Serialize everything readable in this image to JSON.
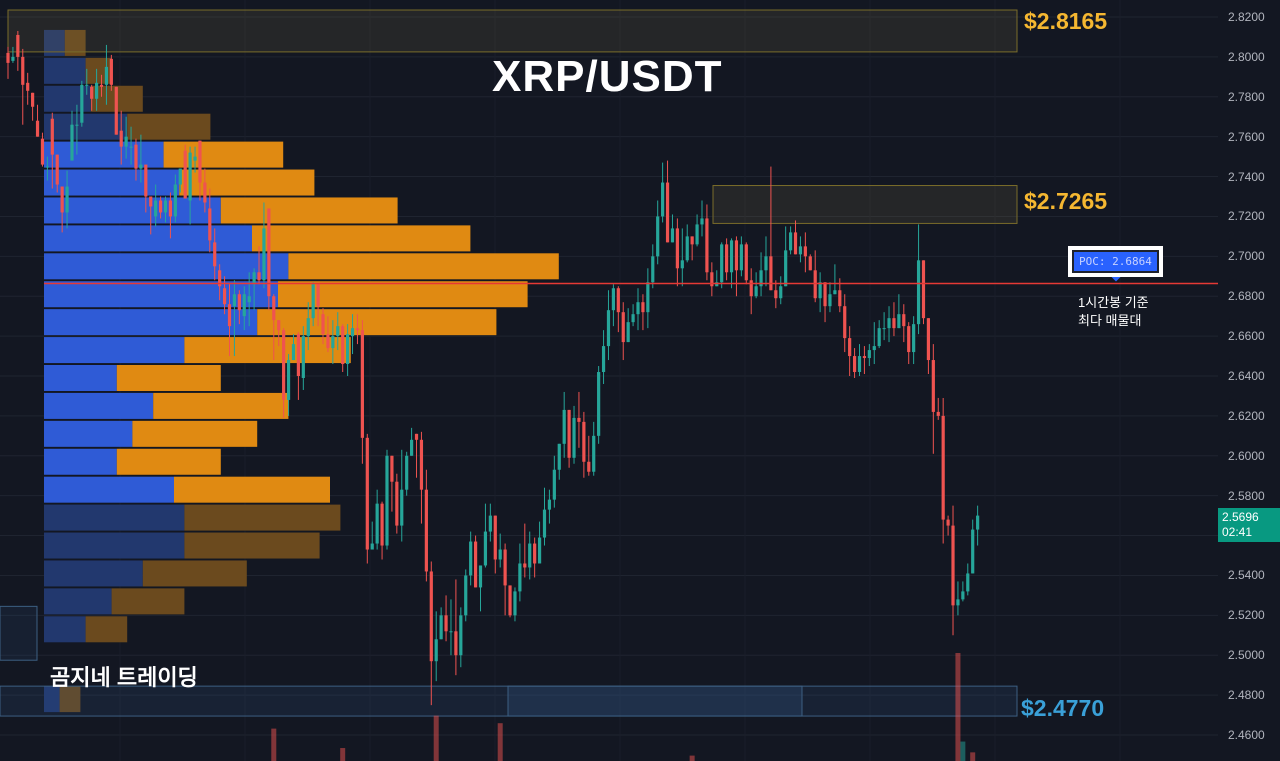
{
  "chart_data": {
    "type": "candlestick",
    "title": "XRP/USDT",
    "watermark": "곰지네 트레이딩",
    "y_range": [
      2.453,
      2.824
    ],
    "y_ticks": [
      "2.8200",
      "2.8000",
      "2.7800",
      "2.7600",
      "2.7400",
      "2.7200",
      "2.7000",
      "2.6800",
      "2.6600",
      "2.6400",
      "2.6200",
      "2.6000",
      "2.5800",
      "2.5600",
      "2.5400",
      "2.5200",
      "2.5000",
      "2.4800",
      "2.4600"
    ],
    "last_price": {
      "value": "2.5696",
      "countdown": "02:41",
      "color": "#089981"
    },
    "levels": [
      {
        "label": "$2.8165",
        "price": 2.8165,
        "color": "#f5b731"
      },
      {
        "label": "$2.7265",
        "price": 2.7265,
        "color": "#f5b731"
      },
      {
        "label": "$2.4770",
        "price": 2.477,
        "color": "#3aa0d8"
      }
    ],
    "poc": {
      "label": "POC: 2.6864",
      "price": 2.6864,
      "note_line1": "1시간봉 기준",
      "note_line2": "최다 매물대"
    },
    "colors": {
      "up": "#26a69a",
      "down": "#ef5350",
      "vp_buy": "#2f5bd6",
      "vp_sell": "#e08a12",
      "poc_line": "#e53935"
    },
    "volume_profile": [
      {
        "price": 2.807,
        "buy": 0.04,
        "sell": 0.04,
        "in_va": false
      },
      {
        "price": 2.793,
        "buy": 0.08,
        "sell": 0.05,
        "in_va": false
      },
      {
        "price": 2.779,
        "buy": 0.09,
        "sell": 0.1,
        "in_va": false
      },
      {
        "price": 2.765,
        "buy": 0.16,
        "sell": 0.16,
        "in_va": false
      },
      {
        "price": 2.751,
        "buy": 0.23,
        "sell": 0.23,
        "in_va": true
      },
      {
        "price": 2.737,
        "buy": 0.26,
        "sell": 0.26,
        "in_va": true
      },
      {
        "price": 2.723,
        "buy": 0.34,
        "sell": 0.34,
        "in_va": true
      },
      {
        "price": 2.709,
        "buy": 0.4,
        "sell": 0.42,
        "in_va": true
      },
      {
        "price": 2.695,
        "buy": 0.47,
        "sell": 0.52,
        "in_va": true
      },
      {
        "price": 2.681,
        "buy": 0.45,
        "sell": 0.48,
        "in_va": true
      },
      {
        "price": 2.667,
        "buy": 0.41,
        "sell": 0.46,
        "in_va": true
      },
      {
        "price": 2.653,
        "buy": 0.27,
        "sell": 0.32,
        "in_va": true
      },
      {
        "price": 2.639,
        "buy": 0.14,
        "sell": 0.2,
        "in_va": true
      },
      {
        "price": 2.625,
        "buy": 0.21,
        "sell": 0.26,
        "in_va": true
      },
      {
        "price": 2.611,
        "buy": 0.17,
        "sell": 0.24,
        "in_va": true
      },
      {
        "price": 2.597,
        "buy": 0.14,
        "sell": 0.2,
        "in_va": true
      },
      {
        "price": 2.583,
        "buy": 0.25,
        "sell": 0.3,
        "in_va": true
      },
      {
        "price": 2.569,
        "buy": 0.27,
        "sell": 0.3,
        "in_va": false
      },
      {
        "price": 2.555,
        "buy": 0.27,
        "sell": 0.26,
        "in_va": false
      },
      {
        "price": 2.541,
        "buy": 0.19,
        "sell": 0.2,
        "in_va": false
      },
      {
        "price": 2.527,
        "buy": 0.13,
        "sell": 0.14,
        "in_va": false
      },
      {
        "price": 2.513,
        "buy": 0.08,
        "sell": 0.08,
        "in_va": false
      },
      {
        "price": 2.478,
        "buy": 0.03,
        "sell": 0.04,
        "in_va": false
      }
    ],
    "candles": [
      [
        2.802,
        2.797,
        2.805,
        2.789
      ],
      [
        2.798,
        2.8,
        2.805,
        2.797
      ],
      [
        2.811,
        2.8,
        2.813,
        2.793
      ],
      [
        2.8,
        2.786,
        2.804,
        2.766
      ],
      [
        2.787,
        2.783,
        2.792,
        2.776
      ],
      [
        2.782,
        2.775,
        2.782,
        2.768
      ],
      [
        2.768,
        2.76,
        2.776,
        2.76
      ],
      [
        2.759,
        2.746,
        2.762,
        2.745
      ],
      [
        2.745,
        2.745,
        2.75,
        2.738
      ],
      [
        2.769,
        2.751,
        2.772,
        2.734
      ],
      [
        2.751,
        2.736,
        2.751,
        2.732
      ],
      [
        2.735,
        2.722,
        2.735,
        2.712
      ],
      [
        2.722,
        2.735,
        2.743,
        2.714
      ],
      [
        2.748,
        2.766,
        2.773,
        2.748
      ],
      [
        2.766,
        2.766,
        2.776,
        2.751
      ],
      [
        2.767,
        2.786,
        2.788,
        2.765
      ],
      [
        2.786,
        2.786,
        2.794,
        2.781
      ],
      [
        2.785,
        2.779,
        2.786,
        2.773
      ],
      [
        2.779,
        2.787,
        2.794,
        2.773
      ],
      [
        2.786,
        2.785,
        2.791,
        2.78
      ],
      [
        2.786,
        2.795,
        2.806,
        2.776
      ],
      [
        2.799,
        2.786,
        2.801,
        2.783
      ],
      [
        2.785,
        2.761,
        2.785,
        2.761
      ],
      [
        2.763,
        2.755,
        2.773,
        2.746
      ],
      [
        2.755,
        2.76,
        2.77,
        2.749
      ],
      [
        2.755,
        2.755,
        2.765,
        2.746
      ],
      [
        2.756,
        2.744,
        2.759,
        2.738
      ],
      [
        2.744,
        2.746,
        2.761,
        2.737
      ],
      [
        2.746,
        2.73,
        2.746,
        2.722
      ],
      [
        2.73,
        2.725,
        2.73,
        2.711
      ],
      [
        2.72,
        2.728,
        2.736,
        2.715
      ],
      [
        2.728,
        2.722,
        2.73,
        2.719
      ],
      [
        2.722,
        2.728,
        2.73,
        2.717
      ],
      [
        2.728,
        2.72,
        2.732,
        2.709
      ],
      [
        2.72,
        2.736,
        2.741,
        2.717
      ],
      [
        2.736,
        2.744,
        2.744,
        2.732
      ],
      [
        2.753,
        2.729,
        2.756,
        2.729
      ],
      [
        2.728,
        2.752,
        2.755,
        2.716
      ],
      [
        2.748,
        2.75,
        2.755,
        2.742
      ],
      [
        2.758,
        2.737,
        2.758,
        2.728
      ],
      [
        2.737,
        2.727,
        2.744,
        2.722
      ],
      [
        2.724,
        2.708,
        2.734,
        2.702
      ],
      [
        2.707,
        2.695,
        2.714,
        2.688
      ],
      [
        2.693,
        2.685,
        2.696,
        2.678
      ],
      [
        2.684,
        2.676,
        2.69,
        2.671
      ],
      [
        2.676,
        2.665,
        2.686,
        2.65
      ],
      [
        2.675,
        2.681,
        2.688,
        2.65
      ],
      [
        2.681,
        2.673,
        2.683,
        2.666
      ],
      [
        2.67,
        2.681,
        2.685,
        2.663
      ],
      [
        2.677,
        2.68,
        2.692,
        2.665
      ],
      [
        2.686,
        2.692,
        2.694,
        2.673
      ],
      [
        2.692,
        2.688,
        2.705,
        2.686
      ],
      [
        2.688,
        2.714,
        2.727,
        2.684
      ],
      [
        2.724,
        2.68,
        2.724,
        2.673
      ],
      [
        2.68,
        2.668,
        2.681,
        2.648
      ],
      [
        2.668,
        2.663,
        2.668,
        2.655
      ],
      [
        2.663,
        2.628,
        2.664,
        2.619
      ],
      [
        2.628,
        2.648,
        2.651,
        2.62
      ],
      [
        2.648,
        2.656,
        2.661,
        2.648
      ],
      [
        2.661,
        2.64,
        2.662,
        2.628
      ],
      [
        2.639,
        2.66,
        2.665,
        2.633
      ],
      [
        2.66,
        2.669,
        2.677,
        2.653
      ],
      [
        2.669,
        2.686,
        2.687,
        2.665
      ],
      [
        2.686,
        2.675,
        2.686,
        2.665
      ],
      [
        2.671,
        2.661,
        2.674,
        2.656
      ],
      [
        2.661,
        2.654,
        2.67,
        2.652
      ],
      [
        2.654,
        2.66,
        2.668,
        2.646
      ],
      [
        2.66,
        2.665,
        2.672,
        2.653
      ],
      [
        2.665,
        2.646,
        2.666,
        2.642
      ],
      [
        2.646,
        2.661,
        2.666,
        2.64
      ],
      [
        2.66,
        2.664,
        2.671,
        2.651
      ],
      [
        2.664,
        2.663,
        2.671,
        2.656
      ],
      [
        2.663,
        2.609,
        2.668,
        2.596
      ],
      [
        2.609,
        2.553,
        2.611,
        2.546
      ],
      [
        2.553,
        2.556,
        2.567,
        2.553
      ],
      [
        2.556,
        2.576,
        2.583,
        2.553
      ],
      [
        2.576,
        2.555,
        2.577,
        2.548
      ],
      [
        2.555,
        2.6,
        2.603,
        2.553
      ],
      [
        2.6,
        2.587,
        2.6,
        2.572
      ],
      [
        2.587,
        2.565,
        2.591,
        2.561
      ],
      [
        2.565,
        2.583,
        2.603,
        2.557
      ],
      [
        2.583,
        2.6,
        2.602,
        2.58
      ],
      [
        2.6,
        2.608,
        2.614,
        2.6
      ],
      [
        2.611,
        2.608,
        2.611,
        2.589
      ],
      [
        2.608,
        2.583,
        2.612,
        2.566
      ],
      [
        2.583,
        2.542,
        2.593,
        2.537
      ],
      [
        2.542,
        2.497,
        2.547,
        2.475
      ],
      [
        2.497,
        2.508,
        2.522,
        2.487
      ],
      [
        2.508,
        2.52,
        2.524,
        2.508
      ],
      [
        2.52,
        2.512,
        2.53,
        2.507
      ],
      [
        2.512,
        2.512,
        2.528,
        2.5
      ],
      [
        2.512,
        2.5,
        2.538,
        2.49
      ],
      [
        2.5,
        2.52,
        2.524,
        2.494
      ],
      [
        2.52,
        2.54,
        2.543,
        2.517
      ],
      [
        2.54,
        2.557,
        2.562,
        2.535
      ],
      [
        2.557,
        2.534,
        2.56,
        2.534
      ],
      [
        2.534,
        2.545,
        2.545,
        2.522
      ],
      [
        2.545,
        2.562,
        2.576,
        2.544
      ],
      [
        2.562,
        2.57,
        2.576,
        2.557
      ],
      [
        2.57,
        2.548,
        2.57,
        2.541
      ],
      [
        2.548,
        2.553,
        2.561,
        2.544
      ],
      [
        2.553,
        2.535,
        2.556,
        2.52
      ],
      [
        2.535,
        2.52,
        2.535,
        2.519
      ],
      [
        2.52,
        2.532,
        2.534,
        2.517
      ],
      [
        2.532,
        2.546,
        2.556,
        2.527
      ],
      [
        2.546,
        2.544,
        2.566,
        2.539
      ],
      [
        2.544,
        2.556,
        2.562,
        2.538
      ],
      [
        2.556,
        2.546,
        2.559,
        2.539
      ],
      [
        2.546,
        2.559,
        2.567,
        2.546
      ],
      [
        2.559,
        2.573,
        2.584,
        2.555
      ],
      [
        2.573,
        2.578,
        2.583,
        2.566
      ],
      [
        2.578,
        2.593,
        2.6,
        2.574
      ],
      [
        2.593,
        2.606,
        2.606,
        2.588
      ],
      [
        2.606,
        2.623,
        2.632,
        2.599
      ],
      [
        2.623,
        2.599,
        2.623,
        2.594
      ],
      [
        2.599,
        2.619,
        2.625,
        2.596
      ],
      [
        2.619,
        2.617,
        2.632,
        2.604
      ],
      [
        2.617,
        2.597,
        2.622,
        2.589
      ],
      [
        2.597,
        2.592,
        2.61,
        2.59
      ],
      [
        2.592,
        2.61,
        2.617,
        2.59
      ],
      [
        2.61,
        2.642,
        2.645,
        2.606
      ],
      [
        2.642,
        2.655,
        2.663,
        2.636
      ],
      [
        2.655,
        2.673,
        2.683,
        2.648
      ],
      [
        2.673,
        2.684,
        2.686,
        2.665
      ],
      [
        2.684,
        2.672,
        2.685,
        2.662
      ],
      [
        2.672,
        2.657,
        2.677,
        2.648
      ],
      [
        2.657,
        2.667,
        2.674,
        2.657
      ],
      [
        2.667,
        2.671,
        2.676,
        2.665
      ],
      [
        2.671,
        2.677,
        2.684,
        2.663
      ],
      [
        2.677,
        2.672,
        2.681,
        2.663
      ],
      [
        2.672,
        2.687,
        2.694,
        2.664
      ],
      [
        2.687,
        2.7,
        2.706,
        2.684
      ],
      [
        2.7,
        2.72,
        2.728,
        2.696
      ],
      [
        2.72,
        2.737,
        2.747,
        2.717
      ],
      [
        2.737,
        2.707,
        2.748,
        2.707
      ],
      [
        2.707,
        2.714,
        2.721,
        2.707
      ],
      [
        2.714,
        2.694,
        2.719,
        2.685
      ],
      [
        2.694,
        2.698,
        2.714,
        2.685
      ],
      [
        2.698,
        2.71,
        2.716,
        2.697
      ],
      [
        2.71,
        2.706,
        2.71,
        2.698
      ],
      [
        2.706,
        2.716,
        2.721,
        2.705
      ],
      [
        2.716,
        2.719,
        2.728,
        2.71
      ],
      [
        2.719,
        2.692,
        2.726,
        2.688
      ],
      [
        2.692,
        2.685,
        2.697,
        2.68
      ],
      [
        2.685,
        2.687,
        2.693,
        2.685
      ],
      [
        2.687,
        2.706,
        2.707,
        2.684
      ],
      [
        2.706,
        2.692,
        2.709,
        2.688
      ],
      [
        2.692,
        2.708,
        2.709,
        2.684
      ],
      [
        2.708,
        2.693,
        2.71,
        2.68
      ],
      [
        2.693,
        2.706,
        2.71,
        2.69
      ],
      [
        2.706,
        2.688,
        2.707,
        2.686
      ],
      [
        2.688,
        2.68,
        2.694,
        2.671
      ],
      [
        2.68,
        2.685,
        2.692,
        2.679
      ],
      [
        2.685,
        2.693,
        2.702,
        2.68
      ],
      [
        2.693,
        2.7,
        2.71,
        2.685
      ],
      [
        2.7,
        2.683,
        2.745,
        2.683
      ],
      [
        2.683,
        2.679,
        2.688,
        2.674
      ],
      [
        2.679,
        2.685,
        2.69,
        2.676
      ],
      [
        2.685,
        2.703,
        2.715,
        2.685
      ],
      [
        2.703,
        2.712,
        2.715,
        2.701
      ],
      [
        2.712,
        2.701,
        2.718,
        2.701
      ],
      [
        2.701,
        2.705,
        2.71,
        2.697
      ],
      [
        2.705,
        2.7,
        2.712,
        2.692
      ],
      [
        2.7,
        2.693,
        2.701,
        2.693
      ],
      [
        2.693,
        2.679,
        2.703,
        2.677
      ],
      [
        2.679,
        2.687,
        2.692,
        2.672
      ],
      [
        2.687,
        2.675,
        2.687,
        2.667
      ],
      [
        2.675,
        2.681,
        2.687,
        2.672
      ],
      [
        2.681,
        2.683,
        2.696,
        2.681
      ],
      [
        2.683,
        2.675,
        2.689,
        2.672
      ],
      [
        2.675,
        2.659,
        2.681,
        2.652
      ],
      [
        2.659,
        2.65,
        2.665,
        2.64
      ],
      [
        2.65,
        2.642,
        2.654,
        2.639
      ],
      [
        2.642,
        2.65,
        2.656,
        2.64
      ],
      [
        2.65,
        2.649,
        2.655,
        2.641
      ],
      [
        2.649,
        2.653,
        2.656,
        2.645
      ],
      [
        2.653,
        2.655,
        2.667,
        2.646
      ],
      [
        2.655,
        2.664,
        2.668,
        2.654
      ],
      [
        2.664,
        2.664,
        2.672,
        2.658
      ],
      [
        2.664,
        2.669,
        2.675,
        2.657
      ],
      [
        2.669,
        2.664,
        2.677,
        2.66
      ],
      [
        2.664,
        2.671,
        2.681,
        2.664
      ],
      [
        2.671,
        2.665,
        2.676,
        2.657
      ],
      [
        2.665,
        2.652,
        2.667,
        2.646
      ],
      [
        2.652,
        2.666,
        2.67,
        2.646
      ],
      [
        2.666,
        2.698,
        2.716,
        2.661
      ],
      [
        2.698,
        2.669,
        2.698,
        2.666
      ],
      [
        2.669,
        2.648,
        2.669,
        2.641
      ],
      [
        2.648,
        2.622,
        2.656,
        2.601
      ],
      [
        2.622,
        2.62,
        2.629,
        2.618
      ],
      [
        2.62,
        2.568,
        2.629,
        2.556
      ],
      [
        2.568,
        2.565,
        2.57,
        2.56
      ],
      [
        2.565,
        2.525,
        2.575,
        2.51
      ],
      [
        2.525,
        2.528,
        2.537,
        2.52
      ],
      [
        2.528,
        2.532,
        2.537,
        2.527
      ],
      [
        2.532,
        2.541,
        2.546,
        2.53
      ],
      [
        2.541,
        2.563,
        2.568,
        2.541
      ],
      [
        2.563,
        2.57,
        2.575,
        2.555
      ]
    ],
    "x_index_range": [
      0,
      205
    ],
    "volume_bars": [
      {
        "index": 54,
        "height": 0.3,
        "color": "#ef5350"
      },
      {
        "index": 68,
        "height": 0.12,
        "color": "#ef5350"
      },
      {
        "index": 87,
        "height": 0.42,
        "color": "#ef5350"
      },
      {
        "index": 100,
        "height": 0.35,
        "color": "#ef5350"
      },
      {
        "index": 139,
        "height": 0.05,
        "color": "#ef5350"
      },
      {
        "index": 193,
        "height": 1.0,
        "color": "#ef5350"
      },
      {
        "index": 194,
        "height": 0.18,
        "color": "#26a69a"
      },
      {
        "index": 196,
        "height": 0.08,
        "color": "#ef5350"
      }
    ]
  }
}
